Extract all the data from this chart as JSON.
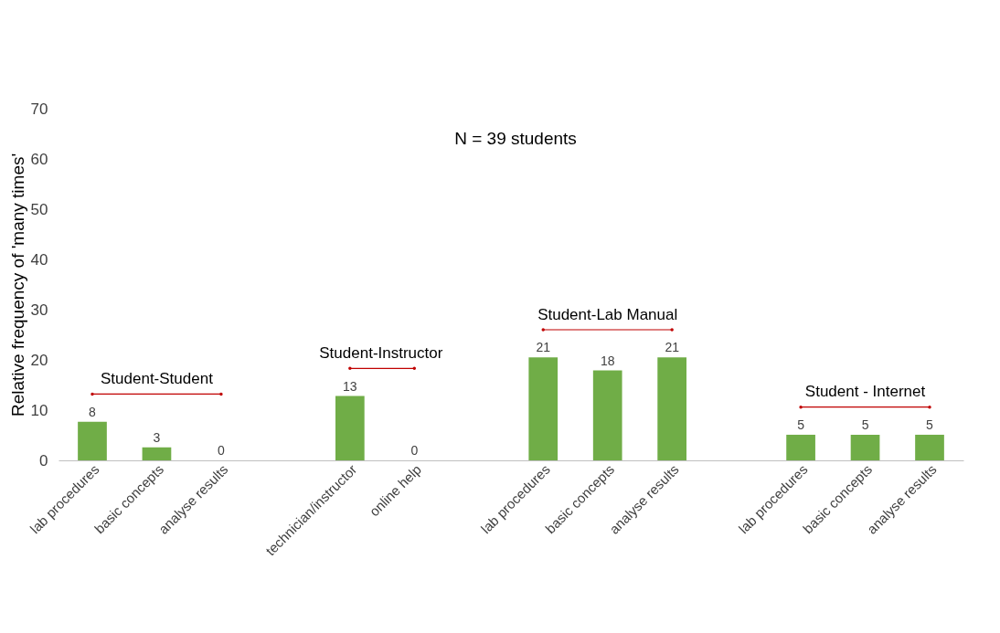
{
  "chart_data": {
    "type": "bar",
    "ylabel": "Relative frequency of 'many times'",
    "categories": [
      "lab procedures",
      "basic concepts",
      "analyse results",
      null,
      "technician/instructor",
      "online help",
      null,
      "lab procedures",
      "basic concepts",
      "analyse results",
      null,
      "lab procedures",
      "basic concepts",
      "analyse results"
    ],
    "values": [
      7.7,
      2.6,
      0,
      null,
      12.8,
      0,
      null,
      20.5,
      17.9,
      20.5,
      null,
      5.1,
      5.1,
      5.1
    ],
    "value_labels": [
      "8",
      "3",
      "0",
      null,
      "13",
      "0",
      null,
      "21",
      "18",
      "21",
      null,
      "5",
      "5",
      "5"
    ],
    "color": "#70ad47",
    "ylim": [
      0,
      70
    ],
    "yticks": [
      0,
      10,
      20,
      30,
      40,
      50,
      60,
      70
    ],
    "grid": false,
    "annotations": [
      "N = 39 students",
      "Student-Student",
      "Student-Instructor",
      "Student-Lab Manual",
      "Student - Internet"
    ]
  }
}
